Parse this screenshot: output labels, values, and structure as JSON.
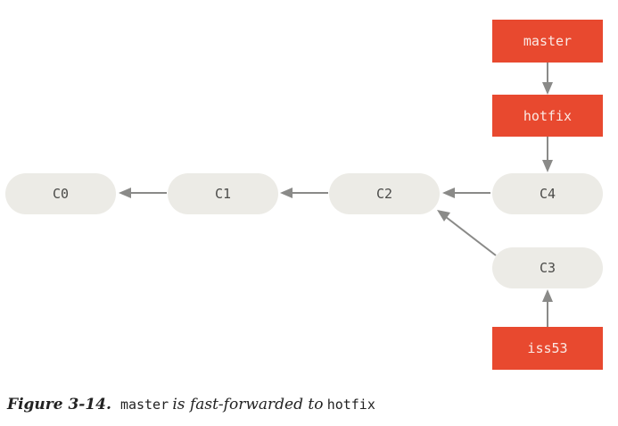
{
  "diagram": {
    "commits": {
      "c0": "C0",
      "c1": "C1",
      "c2": "C2",
      "c3": "C3",
      "c4": "C4"
    },
    "refs": {
      "master": "master",
      "hotfix": "hotfix",
      "iss53": "iss53"
    },
    "colors": {
      "commit_fill": "#ecebe6",
      "ref_fill": "#e8492f",
      "arrow": "#8a8a88"
    }
  },
  "caption": {
    "figure_number": "Figure 3-14.",
    "code1": "master",
    "middle": "is fast-forwarded to",
    "code2": "hotfix"
  }
}
